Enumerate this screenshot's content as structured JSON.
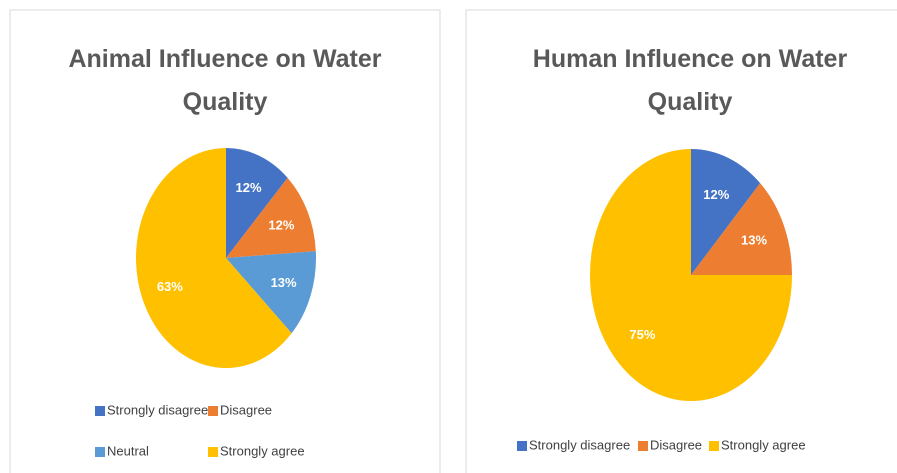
{
  "chart_data": [
    {
      "type": "pie",
      "title": "Animal Influence on Water Quality",
      "categories": [
        "Strongly disagree",
        "Disagree",
        "Neutral",
        "Strongly agree"
      ],
      "values": [
        12,
        12,
        13,
        63
      ],
      "value_labels": [
        "12%",
        "12%",
        "13%",
        "63%"
      ],
      "colors": [
        "#4472c4",
        "#ed7d31",
        "#5b9bd5",
        "#ffc000"
      ],
      "legend": "bottom"
    },
    {
      "type": "pie",
      "title": "Human Influence on Water Quality",
      "categories": [
        "Strongly disagree",
        "Disagree",
        "Strongly agree"
      ],
      "values": [
        12,
        13,
        75
      ],
      "value_labels": [
        "12%",
        "13%",
        "75%"
      ],
      "colors": [
        "#4472c4",
        "#ed7d31",
        "#ffc000"
      ],
      "legend": "bottom"
    }
  ]
}
